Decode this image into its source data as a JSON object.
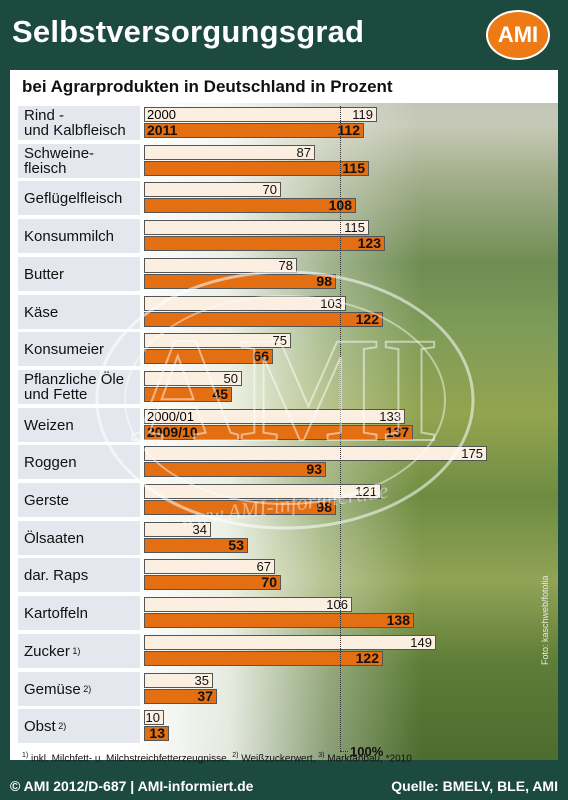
{
  "header": {
    "title": "Selbstversorgungsgrad",
    "logo": "AMI"
  },
  "chart_data": {
    "type": "bar",
    "title": "bei Agrarprodukten in Deutschland in Prozent",
    "legend_labels": {
      "group1_old": "2000",
      "group1_new": "2011",
      "group2_old": "2000/01",
      "group2_new": "2009/10"
    },
    "series": [
      {
        "name": "2000 / 2000/01",
        "color": "#fbefe2"
      },
      {
        "name": "2011 / 2009/10",
        "color": "#e46e12"
      }
    ],
    "categories": [
      {
        "label": "Rind -\nund Kalbfleisch",
        "sup": "",
        "old": 119,
        "new": 112
      },
      {
        "label": "Schweine-\nfleisch",
        "sup": "",
        "old": 87,
        "new": 115
      },
      {
        "label": "Geflügelfleisch",
        "sup": "",
        "old": 70,
        "new": 108
      },
      {
        "label": "Konsummilch",
        "sup": "",
        "old": 115,
        "new": 123
      },
      {
        "label": "Butter",
        "sup": "",
        "old": 78,
        "new": 98
      },
      {
        "label": "Käse",
        "sup": "",
        "old": 103,
        "new": 122
      },
      {
        "label": "Konsumeier",
        "sup": "",
        "old": 75,
        "new": 66
      },
      {
        "label": "Pflanzliche Öle\nund Fette",
        "sup": "",
        "old": 50,
        "new": 45
      },
      {
        "label": "Weizen",
        "sup": "",
        "old": 133,
        "new": 137
      },
      {
        "label": "Roggen",
        "sup": "",
        "old": 175,
        "new": 93
      },
      {
        "label": "Gerste",
        "sup": "",
        "old": 121,
        "new": 98
      },
      {
        "label": "Ölsaaten",
        "sup": "",
        "old": 34,
        "new": 53
      },
      {
        "label": "dar. Raps",
        "sup": "",
        "old": 67,
        "new": 70
      },
      {
        "label": "Kartoffeln",
        "sup": "",
        "old": 106,
        "new": 138
      },
      {
        "label": "Zucker",
        "sup": "1)",
        "old": 149,
        "new": 122
      },
      {
        "label": "Gemüse",
        "sup": "2)",
        "old": 35,
        "new": 37
      },
      {
        "label": "Obst",
        "sup": "2)",
        "old": 10,
        "new": 13
      }
    ],
    "reference_line": {
      "value": 100,
      "label": "100%"
    },
    "grid": false
  },
  "footnote": {
    "n1": "1)",
    "t1": " inkl. Milchfett- u. Milchstreichfetterzeugnisse, ",
    "n2": "2)",
    "t2": " Weißzuckerwert, ",
    "n3": "3)",
    "t3": " Marktanbau, *2010"
  },
  "photo_credit": "Foto: kaschweb/fotolia",
  "footer": {
    "left": "© AMI 2012/D-687 | AMI-informiert.de",
    "right": "Quelle: BMELV, BLE, AMI"
  },
  "watermark": {
    "big": "AMI",
    "ring": "www.AMI-informiert.de"
  }
}
